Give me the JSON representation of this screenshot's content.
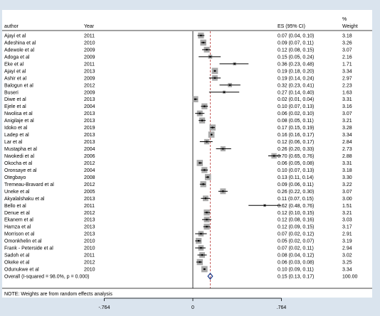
{
  "header": {
    "author": "author",
    "year": "Year",
    "es": "ES (95% CI)",
    "weight_line1": "%",
    "weight_line2": "Weight"
  },
  "footnote": "NOTE: Weights are from random effects analysis",
  "colors": {
    "background": "#dae4ee",
    "panel": "#ffffff",
    "box": "#a9a9a9",
    "ci": "#000000",
    "pooled_line": "#c0504d",
    "diamond": "#1f3f8f",
    "null_line": "#000000"
  },
  "chart_data": {
    "type": "forest",
    "xlim": [
      -0.764,
      0.764
    ],
    "xticks": [
      -0.764,
      0,
      0.764
    ],
    "xtick_labels": [
      "-.764",
      "0",
      ".764"
    ],
    "null_value": 0,
    "pooled_line": 0.15,
    "studies": [
      {
        "author": "Ajayi et al",
        "year": "2011",
        "es": 0.07,
        "lo": 0.04,
        "hi": 0.1,
        "es_label": "0.07 (0.04, 0.10)",
        "weight": "3.18"
      },
      {
        "author": "Adeshina et al",
        "year": "2010",
        "es": 0.09,
        "lo": 0.07,
        "hi": 0.11,
        "es_label": "0.09 (0.07, 0.11)",
        "weight": "3.26"
      },
      {
        "author": "Adewole et al",
        "year": "2009",
        "es": 0.12,
        "lo": 0.08,
        "hi": 0.15,
        "es_label": "0.12 (0.08, 0.15)",
        "weight": "3.07"
      },
      {
        "author": "Adoga et al",
        "year": "2009",
        "es": 0.15,
        "lo": 0.05,
        "hi": 0.24,
        "es_label": "0.15 (0.05, 0.24)",
        "weight": "2.16"
      },
      {
        "author": "Eke et al",
        "year": "2011",
        "es": 0.36,
        "lo": 0.23,
        "hi": 0.48,
        "es_label": "0.36 (0.23, 0.48)",
        "weight": "1.71"
      },
      {
        "author": "Ajayi et al",
        "year": "2013",
        "es": 0.19,
        "lo": 0.18,
        "hi": 0.2,
        "es_label": "0.19 (0.18, 0.20)",
        "weight": "3.34"
      },
      {
        "author": "Ashir et al",
        "year": "2009",
        "es": 0.19,
        "lo": 0.14,
        "hi": 0.24,
        "es_label": "0.19 (0.14, 0.24)",
        "weight": "2.97"
      },
      {
        "author": "Balogun et al",
        "year": "2012",
        "es": 0.32,
        "lo": 0.23,
        "hi": 0.41,
        "es_label": "0.32 (0.23, 0.41)",
        "weight": "2.23"
      },
      {
        "author": "Buseri",
        "year": "2009",
        "es": 0.27,
        "lo": 0.14,
        "hi": 0.4,
        "es_label": "0.27 (0.14, 0.40)",
        "weight": "1.63"
      },
      {
        "author": "Diwe et al",
        "year": "2013",
        "es": 0.02,
        "lo": 0.01,
        "hi": 0.04,
        "es_label": "0.02 (0.01, 0.04)",
        "weight": "3.31"
      },
      {
        "author": "Ejele et al",
        "year": "2004",
        "es": 0.1,
        "lo": 0.07,
        "hi": 0.13,
        "es_label": "0.10 (0.07, 0.13)",
        "weight": "3.16"
      },
      {
        "author": "Nwolisa et al",
        "year": "2013",
        "es": 0.06,
        "lo": 0.02,
        "hi": 0.1,
        "es_label": "0.06 (0.02, 0.10)",
        "weight": "3.07"
      },
      {
        "author": "Anigilaje et al",
        "year": "2013",
        "es": 0.08,
        "lo": 0.05,
        "hi": 0.11,
        "es_label": "0.08 (0.05, 0.11)",
        "weight": "3.21"
      },
      {
        "author": "Idoko et al",
        "year": "2019",
        "es": 0.17,
        "lo": 0.15,
        "hi": 0.19,
        "es_label": "0.17 (0.15, 0.19)",
        "weight": "3.28"
      },
      {
        "author": "Ladep et al",
        "year": "2013",
        "es": 0.16,
        "lo": 0.16,
        "hi": 0.17,
        "es_label": "0.16 (0.16, 0.17)",
        "weight": "3.34"
      },
      {
        "author": "Lar et al",
        "year": "2013",
        "es": 0.12,
        "lo": 0.06,
        "hi": 0.17,
        "es_label": "0.12 (0.06, 0.17)",
        "weight": "2.84"
      },
      {
        "author": "Mustapha et al",
        "year": "2004",
        "es": 0.26,
        "lo": 0.2,
        "hi": 0.33,
        "es_label": "0.26 (0.20, 0.33)",
        "weight": "2.73"
      },
      {
        "author": "Nwokedi et al",
        "year": "2006",
        "es": 0.7,
        "lo": 0.65,
        "hi": 0.76,
        "es_label": "0.70 (0.65, 0.76)",
        "weight": "2.88"
      },
      {
        "author": "Okocha et al",
        "year": "2012",
        "es": 0.06,
        "lo": 0.05,
        "hi": 0.08,
        "es_label": "0.06 (0.05, 0.08)",
        "weight": "3.31"
      },
      {
        "author": "Oronsaye et al",
        "year": "2004",
        "es": 0.1,
        "lo": 0.07,
        "hi": 0.13,
        "es_label": "0.10 (0.07, 0.13)",
        "weight": "3.18"
      },
      {
        "author": "Otegbayo",
        "year": "2008",
        "es": 0.13,
        "lo": 0.11,
        "hi": 0.14,
        "es_label": "0.13 (0.11, 0.14)",
        "weight": "3.30"
      },
      {
        "author": "Tremeau-Bravard et al",
        "year": "2012",
        "es": 0.09,
        "lo": 0.06,
        "hi": 0.11,
        "es_label": "0.09 (0.06, 0.11)",
        "weight": "3.22"
      },
      {
        "author": "Uneke et al",
        "year": "2005",
        "es": 0.26,
        "lo": 0.22,
        "hi": 0.3,
        "es_label": "0.26 (0.22, 0.30)",
        "weight": "3.07"
      },
      {
        "author": "Akyalalshaku et al",
        "year": "2013",
        "es": 0.11,
        "lo": 0.07,
        "hi": 0.15,
        "es_label": "0.11 (0.07, 0.15)",
        "weight": "3.00"
      },
      {
        "author": "Bello et al",
        "year": "2011",
        "es": 0.62,
        "lo": 0.48,
        "hi": 0.76,
        "es_label": "0.62 (0.48, 0.76)",
        "weight": "1.51"
      },
      {
        "author": "Denue et al",
        "year": "2012",
        "es": 0.12,
        "lo": 0.1,
        "hi": 0.15,
        "es_label": "0.12 (0.10, 0.15)",
        "weight": "3.21"
      },
      {
        "author": "Ekanem et al",
        "year": "2013",
        "es": 0.12,
        "lo": 0.08,
        "hi": 0.16,
        "es_label": "0.12 (0.08, 0.16)",
        "weight": "3.03"
      },
      {
        "author": "Hamza et al",
        "year": "2013",
        "es": 0.12,
        "lo": 0.09,
        "hi": 0.15,
        "es_label": "0.12 (0.09, 0.15)",
        "weight": "3.17"
      },
      {
        "author": "Morrison et al",
        "year": "2013",
        "es": 0.07,
        "lo": 0.02,
        "hi": 0.12,
        "es_label": "0.07 (0.02, 0.12)",
        "weight": "2.91"
      },
      {
        "author": "Omonkhelin et al",
        "year": "2010",
        "es": 0.05,
        "lo": 0.02,
        "hi": 0.07,
        "es_label": "0.05 (0.02, 0.07)",
        "weight": "3.19"
      },
      {
        "author": "Frank - Peterside et al",
        "year": "2010",
        "es": 0.07,
        "lo": 0.02,
        "hi": 0.11,
        "es_label": "0.07 (0.02, 0.11)",
        "weight": "2.94"
      },
      {
        "author": "Sadoh et al",
        "year": "2011",
        "es": 0.08,
        "lo": 0.04,
        "hi": 0.12,
        "es_label": "0.08 (0.04, 0.12)",
        "weight": "3.02"
      },
      {
        "author": "Okeke et al",
        "year": "2012",
        "es": 0.06,
        "lo": 0.03,
        "hi": 0.08,
        "es_label": "0.06 (0.03, 0.08)",
        "weight": "3.25"
      },
      {
        "author": "Odunukwe et al",
        "year": "2010",
        "es": 0.1,
        "lo": 0.09,
        "hi": 0.11,
        "es_label": "0.10 (0.09, 0.11)",
        "weight": "3.34"
      }
    ],
    "overall": {
      "label": "Overall  (I-squared = 98.0%, p = 0.000)",
      "es": 0.15,
      "lo": 0.13,
      "hi": 0.17,
      "es_label": "0.15 (0.13, 0.17)",
      "weight": "100.00"
    }
  }
}
